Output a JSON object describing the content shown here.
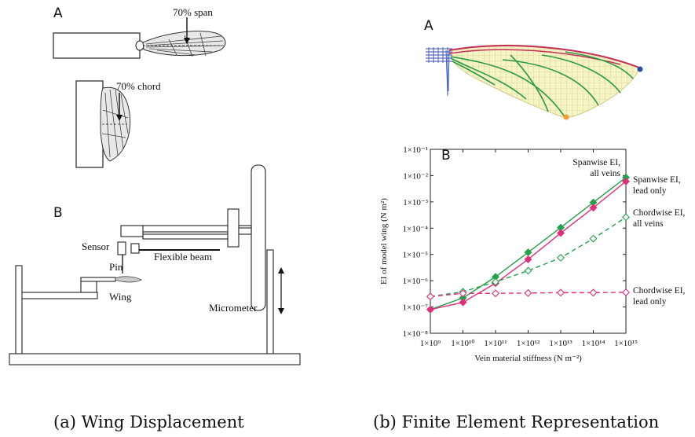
{
  "figure_left": {
    "panel_a_label": "A",
    "panel_b_label": "B",
    "span_label": "70% span",
    "chord_label": "70% chord",
    "sensor_label": "Sensor",
    "pin_label": "Pin",
    "beam_label": "Flexible beam",
    "wing_label": "Wing",
    "micrometer_label": "Micrometer",
    "caption": "(a) Wing Displacement"
  },
  "figure_right": {
    "panel_a_label": "A",
    "panel_b_label": "B",
    "caption": "(b) Finite Element Representation"
  },
  "chart_data": {
    "type": "line",
    "title": "",
    "xlabel": "Vein material stiffness (N m⁻²)",
    "ylabel": "EI of model wing (N m²)",
    "x_scale": "log",
    "y_scale": "log",
    "x": [
      1000000000.0,
      10000000000.0,
      100000000000.0,
      1000000000000.0,
      10000000000000.0,
      100000000000000.0,
      1000000000000000.0
    ],
    "xlim": [
      1000000000.0,
      1000000000000000.0
    ],
    "ylim": [
      1e-08,
      0.1
    ],
    "x_tick_labels": [
      "1×10⁹",
      "1×10¹⁰",
      "1×10¹¹",
      "1×10¹²",
      "1×10¹³",
      "1×10¹⁴",
      "1×10¹⁵"
    ],
    "y_tick_labels": [
      "1×10⁻⁸",
      "1×10⁻⁷",
      "1×10⁻⁶",
      "1×10⁻⁵",
      "1×10⁻⁴",
      "1×10⁻³",
      "1×10⁻²",
      "1×10⁻¹"
    ],
    "series": [
      {
        "name": "Spanwise EI, all veins",
        "color": "#22a24a",
        "marker": "filled-diamond",
        "dashed": false,
        "values": [
          8e-08,
          2.2e-07,
          1.4e-06,
          1.2e-05,
          0.000105,
          0.00095,
          0.0085
        ]
      },
      {
        "name": "Spanwise EI, lead only",
        "color": "#e0307a",
        "marker": "filled-diamond",
        "dashed": false,
        "values": [
          8e-08,
          1.5e-07,
          8e-07,
          6.5e-06,
          6.5e-05,
          0.0006,
          0.006
        ]
      },
      {
        "name": "Chordwise EI, all veins",
        "color": "#22a24a",
        "marker": "open-diamond",
        "dashed": true,
        "values": [
          2.5e-07,
          3.8e-07,
          9e-07,
          2.4e-06,
          7.5e-06,
          4e-05,
          0.00026
        ]
      },
      {
        "name": "Chordwise EI, lead only",
        "color": "#e0307a",
        "marker": "open-diamond",
        "dashed": true,
        "values": [
          2.5e-07,
          3.3e-07,
          3.3e-07,
          3.4e-07,
          3.5e-07,
          3.5e-07,
          3.6e-07
        ]
      }
    ],
    "annotations": [
      {
        "line1": "Spanwise EI,",
        "line2": "all veins"
      },
      {
        "line1": "Spanwise EI,",
        "line2": "lead only"
      },
      {
        "line1": "Chordwise EI,",
        "line2": "all veins"
      },
      {
        "line1": "Chordwise EI,",
        "line2": "lead only"
      }
    ]
  }
}
